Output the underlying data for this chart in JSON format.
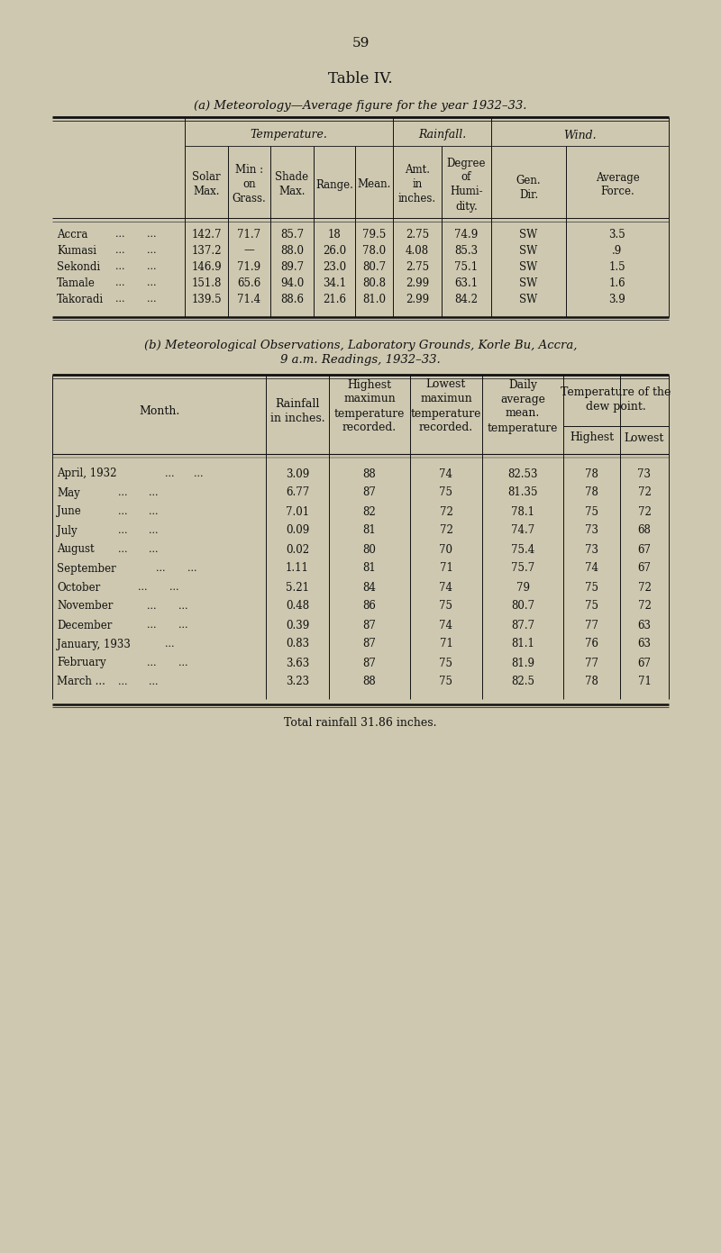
{
  "page_number": "59",
  "title": "Table IV.",
  "bg_color": "#cec8b0",
  "table_a_title": "(a) Meteorology—Average figure for the year 1932–33.",
  "table_b_title_line1": "(b) Meteorological Observations, Laboratory Grounds, Korle Bu, Accra,",
  "table_b_title_line2": "9 a.m. Readings, 1932–33.",
  "table_a_rows": [
    [
      "Accra",
      "...",
      "...",
      "142.7",
      "71.7",
      "85.7",
      "18",
      "79.5",
      "2.75",
      "74.9",
      "SW",
      "3.5"
    ],
    [
      "Kumasi",
      "...",
      "...",
      "137.2",
      "—",
      "88.0",
      "26.0",
      "78.0",
      "4.08",
      "85.3",
      "SW",
      ".9"
    ],
    [
      "Sekondi",
      "...",
      "...",
      "146.9",
      "71.9",
      "89.7",
      "23.0",
      "80.7",
      "2.75",
      "75.1",
      "SW",
      "1.5"
    ],
    [
      "Tamale",
      "...",
      "...",
      "151.8",
      "65.6",
      "94.0",
      "34.1",
      "80.8",
      "2.99",
      "63.1",
      "SW",
      "1.6"
    ],
    [
      "Takoradi",
      "...",
      "...",
      "139.5",
      "71.4",
      "88.6",
      "21.6",
      "81.0",
      "2.99",
      "84.2",
      "SW",
      "3.9"
    ]
  ],
  "table_b_rows": [
    [
      "April, 1932",
      "...",
      "...",
      "3.09",
      "88",
      "74",
      "82.53",
      "78",
      "73"
    ],
    [
      "May",
      "...",
      "...",
      "6.77",
      "87",
      "75",
      "81.35",
      "78",
      "72"
    ],
    [
      "June",
      "...",
      "...",
      "7.01",
      "82",
      "72",
      "78.1",
      "75",
      "72"
    ],
    [
      "July",
      "...",
      "...",
      "0.09",
      "81",
      "72",
      "74.7",
      "73",
      "68"
    ],
    [
      "August",
      "...",
      "...",
      "0.02",
      "80",
      "70",
      "75.4",
      "73",
      "67"
    ],
    [
      "September",
      "...",
      "...",
      "1.11",
      "81",
      "71",
      "75.7",
      "74",
      "67"
    ],
    [
      "October",
      "...",
      "...",
      "5.21",
      "84",
      "74",
      "79",
      "75",
      "72"
    ],
    [
      "November",
      "...",
      "...",
      "0.48",
      "86",
      "75",
      "80.7",
      "75",
      "72"
    ],
    [
      "December",
      "...",
      "...",
      "0.39",
      "87",
      "74",
      "87.7",
      "77",
      "63"
    ],
    [
      "January, 1933",
      "...",
      "",
      "0.83",
      "87",
      "71",
      "81.1",
      "76",
      "63"
    ],
    [
      "February",
      "...",
      "...",
      "3.63",
      "87",
      "75",
      "81.9",
      "77",
      "67"
    ],
    [
      "March ...",
      "...",
      "...",
      "3.23",
      "88",
      "75",
      "82.5",
      "78",
      "71"
    ]
  ],
  "total_rainfall": "Total rainfall 31.86 inches."
}
